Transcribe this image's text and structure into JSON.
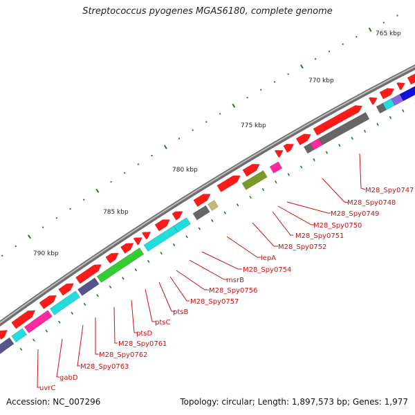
{
  "title": "Streptococcus pyogenes MGAS6180, complete genome",
  "footer": {
    "accession": "Accession: NC_007296",
    "summary": "Topology: circular; Length: 1,897,573 bp; Genes: 1,977"
  },
  "scale_labels": [
    "765 kbp",
    "770 kbp",
    "775 kbp",
    "780 kbp",
    "785 kbp",
    "790 kbp"
  ],
  "gene_labels": [
    "M28_Spy0747",
    "M28_Spy0748",
    "M28_Spy0749",
    "M28_Spy0750",
    "M28_Spy0751",
    "M28_Spy0752",
    "lepA",
    "M28_Spy0754",
    "msrB",
    "M28_Spy0756",
    "M28_Spy0757",
    "ptsB",
    "ptsC",
    "ptsD",
    "M28_Spy0761",
    "M28_Spy0762",
    "M28_Spy0763",
    "gabD",
    "uvrC"
  ],
  "colors": {
    "backbone": "#8a8a8a",
    "forward_gene": "#ff1a1a",
    "cyan": "#22dddd",
    "magenta": "#ff2aa0",
    "grey": "#666666",
    "olive": "#7a9a28",
    "green": "#33cc33",
    "blue": "#1111dd",
    "purple": "#8866dd",
    "slate": "#55558a",
    "khaki": "#c8b878",
    "label": "#cc1111",
    "tick": "#227722"
  }
}
